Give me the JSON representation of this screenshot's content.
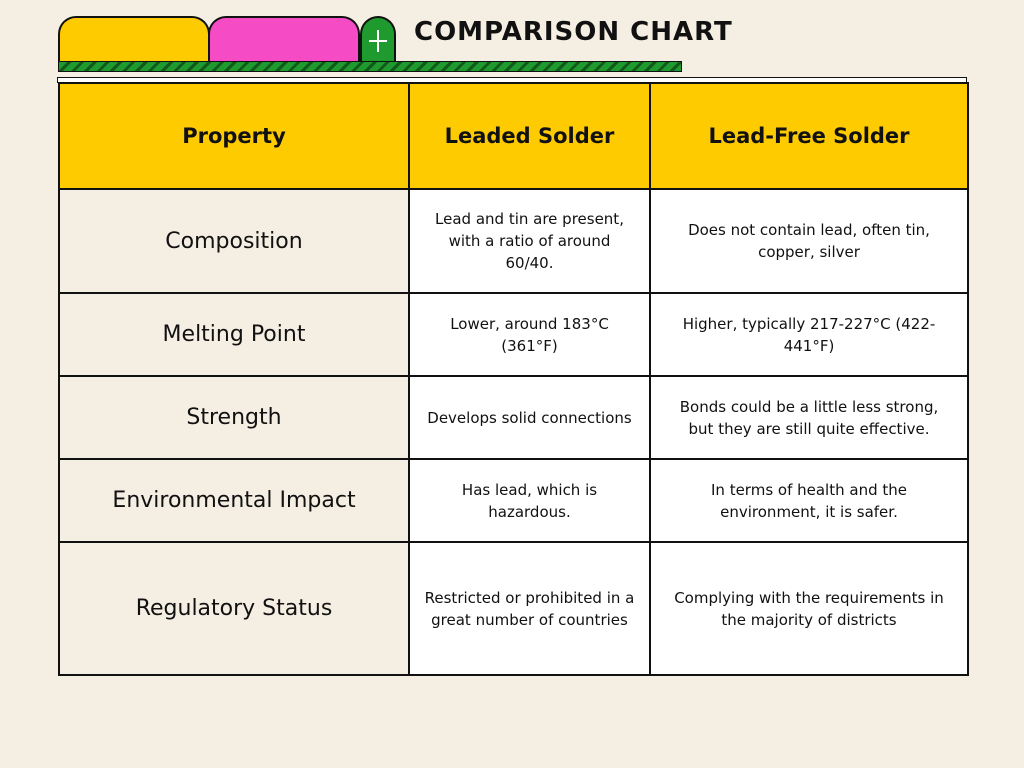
{
  "title": "COMPARISON CHART",
  "table": {
    "headers": [
      "Property",
      "Leaded Solder",
      "Lead-Free Solder"
    ],
    "rows": [
      [
        "Composition",
        "Lead and tin are present, with a ratio of around 60/40.",
        "Does not contain lead, often tin, copper, silver"
      ],
      [
        "Melting Point",
        "Lower, around 183°C (361°F)",
        "Higher, typically 217-227°C (422-441°F)"
      ],
      [
        "Strength",
        "Develops solid connections",
        "Bonds could be a little less strong, but they are still quite effective."
      ],
      [
        "Environmental Impact",
        "Has lead, which is hazardous.",
        "In terms of health and the environment, it is safer."
      ],
      [
        "Regulatory Status",
        "Restricted or prohibited in a great number of countries",
        "Complying with the requirements in the majority of districts"
      ]
    ]
  },
  "colors": {
    "background": "#f5efe3",
    "header": "#fecb00",
    "tab_yellow": "#fecb00",
    "tab_pink": "#f54bc5",
    "accent_green": "#1f9a2f"
  },
  "icons": {
    "add_tab": "plus-icon"
  }
}
